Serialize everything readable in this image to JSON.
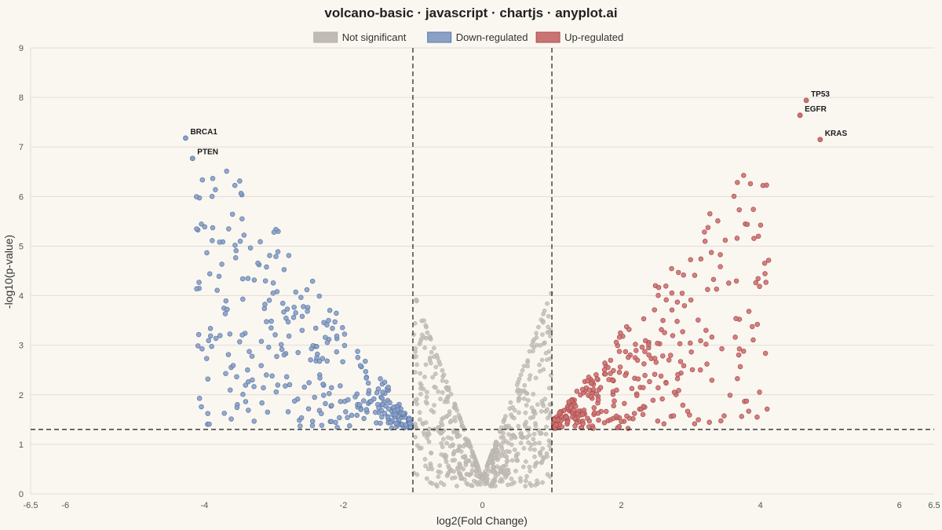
{
  "chart_data": {
    "type": "scatter",
    "title": "volcano-basic · javascript · chartjs · anyplot.ai",
    "xlabel": "log2(Fold Change)",
    "ylabel": "-log10(p-value)",
    "xlim": [
      -6.5,
      6.5
    ],
    "ylim": [
      0,
      9
    ],
    "x_ticks": [
      -6.5,
      -6,
      -4,
      -2,
      0,
      2,
      4,
      6,
      6.5
    ],
    "y_ticks": [
      0,
      1,
      2,
      3,
      4,
      5,
      6,
      7,
      8,
      9
    ],
    "grid": true,
    "legend_position": "top-center",
    "thresholds": {
      "log2fc": [
        -1,
        1
      ],
      "neg_log10_p": 1.3
    },
    "series": [
      {
        "name": "Not significant",
        "color": "#b3afa8",
        "fill": "#c0bcb5",
        "point_count": 600,
        "x_range": [
          -1.0,
          1.0
        ],
        "y_range": [
          0,
          4.0
        ]
      },
      {
        "name": "Down-regulated",
        "color": "#5a78aa",
        "fill": "#8aa0c5",
        "point_count": 330,
        "x_range": [
          -4.5,
          -1.0
        ],
        "y_range": [
          1.3,
          6.7
        ]
      },
      {
        "name": "Up-regulated",
        "color": "#b24a4a",
        "fill": "#c97474",
        "point_count": 330,
        "x_range": [
          1.0,
          5.6
        ],
        "y_range": [
          1.3,
          7.1
        ]
      }
    ],
    "annotations": [
      {
        "label": "BRCA1",
        "x": -4.27,
        "y": 7.18
      },
      {
        "label": "PTEN",
        "x": -4.17,
        "y": 6.77
      },
      {
        "label": "TP53",
        "x": 4.66,
        "y": 7.94
      },
      {
        "label": "EGFR",
        "x": 4.57,
        "y": 7.64
      },
      {
        "label": "KRAS",
        "x": 4.86,
        "y": 7.15
      }
    ]
  }
}
